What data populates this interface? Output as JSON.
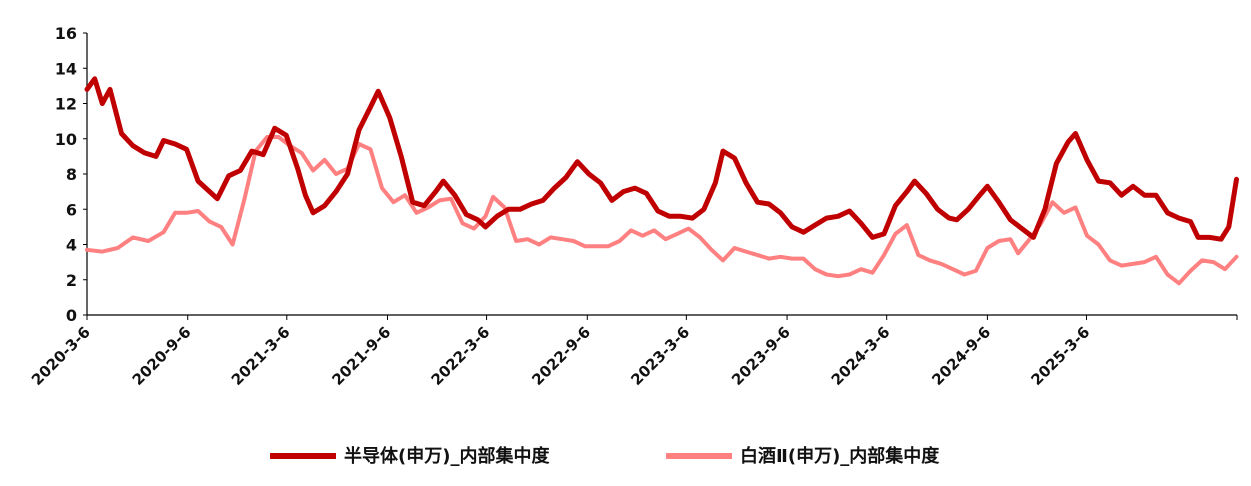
{
  "chart_data": {
    "type": "line",
    "title": "",
    "xlabel": "",
    "ylabel": "",
    "ylim": [
      0,
      16
    ],
    "yticks": [
      0,
      2,
      4,
      6,
      8,
      10,
      12,
      14,
      16
    ],
    "xlim": [
      "2020-03-06",
      "2025-12-06"
    ],
    "xticks": [
      "2020-3-6",
      "2020-9-6",
      "2021-3-6",
      "2021-9-6",
      "2022-3-6",
      "2022-9-6",
      "2023-3-6",
      "2023-9-6",
      "2024-3-6",
      "2024-9-6",
      "2025-3-6"
    ],
    "grid": false,
    "legend_position": "bottom",
    "series": [
      {
        "name": "半导体(申万)_内部集中度",
        "color": "#C00000",
        "points": [
          [
            "2020-03-06",
            12.8
          ],
          [
            "2020-03-20",
            13.4
          ],
          [
            "2020-04-03",
            12.0
          ],
          [
            "2020-04-17",
            12.8
          ],
          [
            "2020-05-08",
            10.3
          ],
          [
            "2020-05-29",
            9.6
          ],
          [
            "2020-06-19",
            9.2
          ],
          [
            "2020-07-10",
            9.0
          ],
          [
            "2020-07-24",
            9.9
          ],
          [
            "2020-08-14",
            9.7
          ],
          [
            "2020-09-04",
            9.4
          ],
          [
            "2020-09-25",
            7.6
          ],
          [
            "2020-10-16",
            7.0
          ],
          [
            "2020-10-30",
            6.6
          ],
          [
            "2020-11-20",
            7.9
          ],
          [
            "2020-12-11",
            8.2
          ],
          [
            "2021-01-01",
            9.3
          ],
          [
            "2021-01-22",
            9.1
          ],
          [
            "2021-02-12",
            10.6
          ],
          [
            "2021-03-05",
            10.2
          ],
          [
            "2021-03-26",
            8.3
          ],
          [
            "2021-04-09",
            6.8
          ],
          [
            "2021-04-23",
            5.8
          ],
          [
            "2021-05-14",
            6.2
          ],
          [
            "2021-06-04",
            7.0
          ],
          [
            "2021-06-25",
            8.0
          ],
          [
            "2021-07-16",
            10.5
          ],
          [
            "2021-08-06",
            11.8
          ],
          [
            "2021-08-20",
            12.7
          ],
          [
            "2021-09-10",
            11.2
          ],
          [
            "2021-10-01",
            9.0
          ],
          [
            "2021-10-22",
            6.4
          ],
          [
            "2021-11-12",
            6.2
          ],
          [
            "2021-12-03",
            7.0
          ],
          [
            "2021-12-17",
            7.6
          ],
          [
            "2022-01-07",
            6.8
          ],
          [
            "2022-01-28",
            5.7
          ],
          [
            "2022-02-18",
            5.4
          ],
          [
            "2022-03-04",
            5.0
          ],
          [
            "2022-03-25",
            5.6
          ],
          [
            "2022-04-15",
            6.0
          ],
          [
            "2022-05-06",
            6.0
          ],
          [
            "2022-05-27",
            6.3
          ],
          [
            "2022-06-17",
            6.5
          ],
          [
            "2022-07-08",
            7.2
          ],
          [
            "2022-07-29",
            7.8
          ],
          [
            "2022-08-19",
            8.7
          ],
          [
            "2022-09-09",
            8.0
          ],
          [
            "2022-09-30",
            7.5
          ],
          [
            "2022-10-21",
            6.5
          ],
          [
            "2022-11-11",
            7.0
          ],
          [
            "2022-12-02",
            7.2
          ],
          [
            "2022-12-23",
            6.9
          ],
          [
            "2023-01-13",
            5.9
          ],
          [
            "2023-02-03",
            5.6
          ],
          [
            "2023-02-24",
            5.6
          ],
          [
            "2023-03-17",
            5.5
          ],
          [
            "2023-04-07",
            6.0
          ],
          [
            "2023-04-28",
            7.5
          ],
          [
            "2023-05-12",
            9.3
          ],
          [
            "2023-06-02",
            8.9
          ],
          [
            "2023-06-23",
            7.5
          ],
          [
            "2023-07-14",
            6.4
          ],
          [
            "2023-08-04",
            6.3
          ],
          [
            "2023-08-25",
            5.8
          ],
          [
            "2023-09-15",
            5.0
          ],
          [
            "2023-10-06",
            4.7
          ],
          [
            "2023-10-27",
            5.1
          ],
          [
            "2023-11-17",
            5.5
          ],
          [
            "2023-12-08",
            5.6
          ],
          [
            "2023-12-29",
            5.9
          ],
          [
            "2024-01-19",
            5.2
          ],
          [
            "2024-02-09",
            4.4
          ],
          [
            "2024-03-01",
            4.6
          ],
          [
            "2024-03-22",
            6.2
          ],
          [
            "2024-04-12",
            7.0
          ],
          [
            "2024-04-26",
            7.6
          ],
          [
            "2024-05-17",
            6.9
          ],
          [
            "2024-06-07",
            6.0
          ],
          [
            "2024-06-28",
            5.5
          ],
          [
            "2024-07-12",
            5.4
          ],
          [
            "2024-08-02",
            6.0
          ],
          [
            "2024-08-23",
            6.8
          ],
          [
            "2024-09-06",
            7.3
          ],
          [
            "2024-09-27",
            6.4
          ],
          [
            "2024-10-18",
            5.4
          ],
          [
            "2024-11-08",
            4.9
          ],
          [
            "2024-11-29",
            4.4
          ],
          [
            "2024-12-20",
            6.0
          ],
          [
            "2025-01-10",
            8.6
          ],
          [
            "2025-01-31",
            9.8
          ],
          [
            "2025-02-14",
            10.3
          ],
          [
            "2025-03-07",
            8.8
          ],
          [
            "2025-03-28",
            7.6
          ],
          [
            "2025-04-18",
            7.5
          ],
          [
            "2025-05-09",
            6.8
          ],
          [
            "2025-05-30",
            7.3
          ],
          [
            "2025-06-20",
            6.8
          ],
          [
            "2025-07-11",
            6.8
          ],
          [
            "2025-08-01",
            5.8
          ],
          [
            "2025-08-22",
            5.5
          ],
          [
            "2025-09-12",
            5.3
          ],
          [
            "2025-09-26",
            4.4
          ],
          [
            "2025-10-17",
            4.4
          ],
          [
            "2025-11-07",
            4.3
          ],
          [
            "2025-11-21",
            5.0
          ],
          [
            "2025-12-05",
            7.7
          ]
        ]
      },
      {
        "name": "白酒Ⅱ(申万)_内部集中度",
        "color": "#FF8080",
        "points": [
          [
            "2020-03-06",
            3.7
          ],
          [
            "2020-04-03",
            3.6
          ],
          [
            "2020-05-01",
            3.8
          ],
          [
            "2020-05-29",
            4.4
          ],
          [
            "2020-06-26",
            4.2
          ],
          [
            "2020-07-24",
            4.7
          ],
          [
            "2020-08-14",
            5.8
          ],
          [
            "2020-09-04",
            5.8
          ],
          [
            "2020-09-25",
            5.9
          ],
          [
            "2020-10-16",
            5.3
          ],
          [
            "2020-11-06",
            5.0
          ],
          [
            "2020-11-27",
            4.0
          ],
          [
            "2020-12-18",
            6.5
          ],
          [
            "2021-01-08",
            9.3
          ],
          [
            "2021-01-29",
            10.1
          ],
          [
            "2021-02-19",
            10.1
          ],
          [
            "2021-03-12",
            9.6
          ],
          [
            "2021-04-02",
            9.2
          ],
          [
            "2021-04-23",
            8.2
          ],
          [
            "2021-05-14",
            8.8
          ],
          [
            "2021-06-04",
            8.0
          ],
          [
            "2021-06-25",
            8.3
          ],
          [
            "2021-07-16",
            9.7
          ],
          [
            "2021-08-06",
            9.4
          ],
          [
            "2021-08-27",
            7.2
          ],
          [
            "2021-09-17",
            6.4
          ],
          [
            "2021-10-08",
            6.8
          ],
          [
            "2021-10-29",
            5.8
          ],
          [
            "2021-11-19",
            6.1
          ],
          [
            "2021-12-10",
            6.5
          ],
          [
            "2021-12-31",
            6.6
          ],
          [
            "2022-01-21",
            5.2
          ],
          [
            "2022-02-11",
            4.9
          ],
          [
            "2022-03-04",
            5.6
          ],
          [
            "2022-03-18",
            6.7
          ],
          [
            "2022-04-08",
            6.1
          ],
          [
            "2022-04-29",
            4.2
          ],
          [
            "2022-05-20",
            4.3
          ],
          [
            "2022-06-10",
            4.0
          ],
          [
            "2022-07-01",
            4.4
          ],
          [
            "2022-07-22",
            4.3
          ],
          [
            "2022-08-12",
            4.2
          ],
          [
            "2022-09-02",
            3.9
          ],
          [
            "2022-09-23",
            3.9
          ],
          [
            "2022-10-14",
            3.9
          ],
          [
            "2022-11-04",
            4.2
          ],
          [
            "2022-11-25",
            4.8
          ],
          [
            "2022-12-16",
            4.5
          ],
          [
            "2023-01-06",
            4.8
          ],
          [
            "2023-01-27",
            4.3
          ],
          [
            "2023-02-17",
            4.6
          ],
          [
            "2023-03-10",
            4.9
          ],
          [
            "2023-03-31",
            4.4
          ],
          [
            "2023-04-21",
            3.7
          ],
          [
            "2023-05-12",
            3.1
          ],
          [
            "2023-06-02",
            3.8
          ],
          [
            "2023-06-23",
            3.6
          ],
          [
            "2023-07-14",
            3.4
          ],
          [
            "2023-08-04",
            3.2
          ],
          [
            "2023-08-25",
            3.3
          ],
          [
            "2023-09-15",
            3.2
          ],
          [
            "2023-10-06",
            3.2
          ],
          [
            "2023-10-27",
            2.6
          ],
          [
            "2023-11-17",
            2.3
          ],
          [
            "2023-12-08",
            2.2
          ],
          [
            "2023-12-29",
            2.3
          ],
          [
            "2024-01-19",
            2.6
          ],
          [
            "2024-02-09",
            2.4
          ],
          [
            "2024-03-01",
            3.4
          ],
          [
            "2024-03-22",
            4.6
          ],
          [
            "2024-04-12",
            5.1
          ],
          [
            "2024-05-03",
            3.4
          ],
          [
            "2024-05-24",
            3.1
          ],
          [
            "2024-06-14",
            2.9
          ],
          [
            "2024-07-05",
            2.6
          ],
          [
            "2024-07-26",
            2.3
          ],
          [
            "2024-08-16",
            2.5
          ],
          [
            "2024-09-06",
            3.8
          ],
          [
            "2024-09-27",
            4.2
          ],
          [
            "2024-10-18",
            4.3
          ],
          [
            "2024-11-01",
            3.5
          ],
          [
            "2024-11-22",
            4.3
          ],
          [
            "2024-12-13",
            5.2
          ],
          [
            "2025-01-03",
            6.4
          ],
          [
            "2025-01-24",
            5.8
          ],
          [
            "2025-02-14",
            6.1
          ],
          [
            "2025-03-07",
            4.5
          ],
          [
            "2025-03-28",
            4.0
          ],
          [
            "2025-04-18",
            3.1
          ],
          [
            "2025-05-09",
            2.8
          ],
          [
            "2025-05-30",
            2.9
          ],
          [
            "2025-06-20",
            3.0
          ],
          [
            "2025-07-11",
            3.3
          ],
          [
            "2025-08-01",
            2.3
          ],
          [
            "2025-08-22",
            1.8
          ],
          [
            "2025-09-12",
            2.5
          ],
          [
            "2025-10-03",
            3.1
          ],
          [
            "2025-10-24",
            3.0
          ],
          [
            "2025-11-14",
            2.6
          ],
          [
            "2025-12-05",
            3.3
          ]
        ]
      }
    ]
  }
}
